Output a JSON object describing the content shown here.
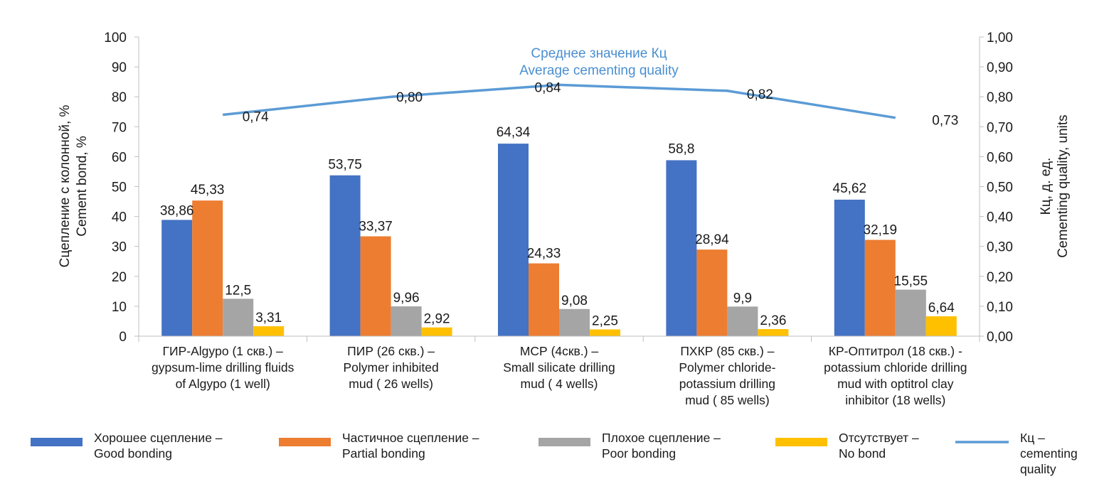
{
  "chart_data": {
    "type": "bar",
    "title_lines": [
      "Среднее значение Кц",
      "Average cementing quality"
    ],
    "ylabel_left_lines": [
      "Сцепление с колонной, %",
      "Cement bond, %"
    ],
    "ylabel_right_lines": [
      "Кц, д. ед.",
      "Cementing quality, units"
    ],
    "ylim": [
      0,
      100
    ],
    "y_ticks": [
      "0",
      "10",
      "20",
      "30",
      "40",
      "50",
      "60",
      "70",
      "80",
      "90",
      "100"
    ],
    "y2lim": [
      0,
      1
    ],
    "y2_ticks": [
      "0,00",
      "0,10",
      "0,20",
      "0,30",
      "0,40",
      "0,50",
      "0,60",
      "0,70",
      "0,80",
      "0,90",
      "1,00"
    ],
    "categories": [
      [
        "ГИР-Algypo (1 скв.) –",
        "gypsum-lime drilling fluids",
        "of  Algypo (1 well)"
      ],
      [
        "ПИР (26 скв.) –",
        "Polymer inhibited",
        "mud ( 26 wells)"
      ],
      [
        "МСР (4скв.) –",
        "Small silicate drilling",
        "mud ( 4 wells)"
      ],
      [
        "ПХКР (85 скв.) –",
        "Polymer chloride-",
        "potassium drilling",
        "mud ( 85 wells)"
      ],
      [
        "КР-Оптитрол (18 скв.) -",
        "potassium chloride drilling",
        "mud with optitrol clay",
        "inhibitor (18 wells)"
      ]
    ],
    "series": [
      {
        "name": [
          "Хорошее сцепление –",
          "Good bonding"
        ],
        "color": "#4472c4",
        "values": [
          38.86,
          53.75,
          64.34,
          58.8,
          45.62
        ],
        "labels": [
          "38,86",
          "53,75",
          "64,34",
          "58,8",
          "45,62"
        ]
      },
      {
        "name": [
          "Частичное сцепление –",
          "Partial bonding"
        ],
        "color": "#ed7d31",
        "values": [
          45.33,
          33.37,
          24.33,
          28.94,
          32.19
        ],
        "labels": [
          "45,33",
          "33,37",
          "24,33",
          "28,94",
          "32,19"
        ]
      },
      {
        "name": [
          "Плохое сцепление –",
          "Poor bonding"
        ],
        "color": "#a5a5a5",
        "values": [
          12.5,
          9.96,
          9.08,
          9.9,
          15.55
        ],
        "labels": [
          "12,5",
          "9,96",
          "9,08",
          "9,9",
          "15,55"
        ]
      },
      {
        "name": [
          "Отсутствует –",
          "No bond"
        ],
        "color": "#ffc000",
        "values": [
          3.31,
          2.92,
          2.25,
          2.36,
          6.64
        ],
        "labels": [
          "3,31",
          "2,92",
          "2,25",
          "2,36",
          "6,64"
        ]
      }
    ],
    "line_series": {
      "name": [
        "Кц –",
        "cementing",
        "quality"
      ],
      "color": "#5b9bd5",
      "values": [
        0.74,
        0.8,
        0.84,
        0.82,
        0.73
      ],
      "labels": [
        "0,74",
        "0,80",
        "0,84",
        "0,82",
        "0,73"
      ]
    }
  }
}
